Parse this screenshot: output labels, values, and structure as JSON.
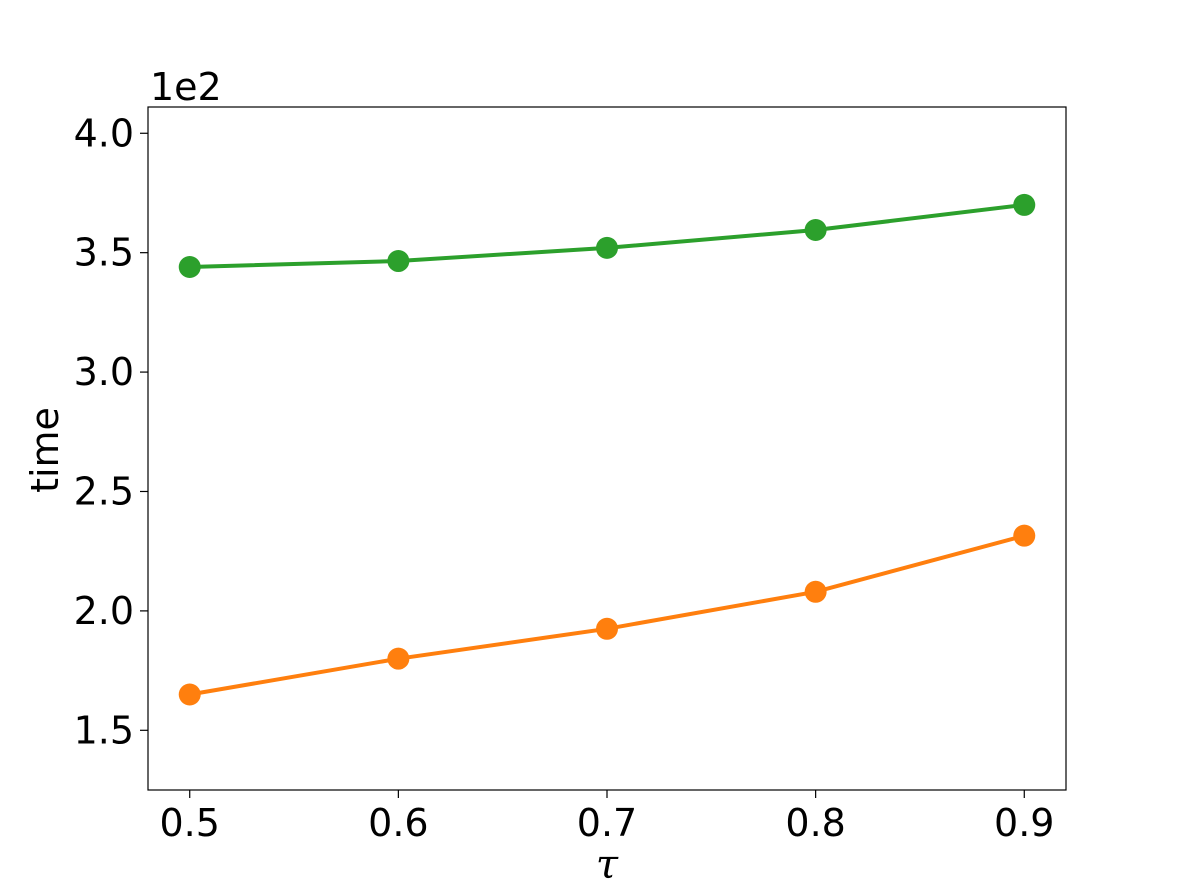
{
  "chart_data": {
    "type": "line",
    "title": "",
    "xlabel": "τ",
    "ylabel": "time",
    "y_offset_label": "1e2",
    "x": [
      0.5,
      0.6,
      0.7,
      0.8,
      0.9
    ],
    "x_ticks": [
      "0.5",
      "0.6",
      "0.7",
      "0.8",
      "0.9"
    ],
    "y_ticks": [
      1.5,
      2.0,
      2.5,
      3.0,
      3.5,
      4.0
    ],
    "y_tick_labels": [
      "1.5",
      "2.0",
      "2.5",
      "3.0",
      "3.5",
      "4.0"
    ],
    "xlim": [
      0.48,
      0.92
    ],
    "ylim": [
      1.25,
      4.11
    ],
    "grid": false,
    "legend": "none",
    "series": [
      {
        "color": "#2ca02c",
        "values": [
          3.44,
          3.465,
          3.52,
          3.595,
          3.7
        ]
      },
      {
        "color": "#ff7f0e",
        "values": [
          1.65,
          1.8,
          1.925,
          2.08,
          2.315
        ]
      }
    ]
  }
}
